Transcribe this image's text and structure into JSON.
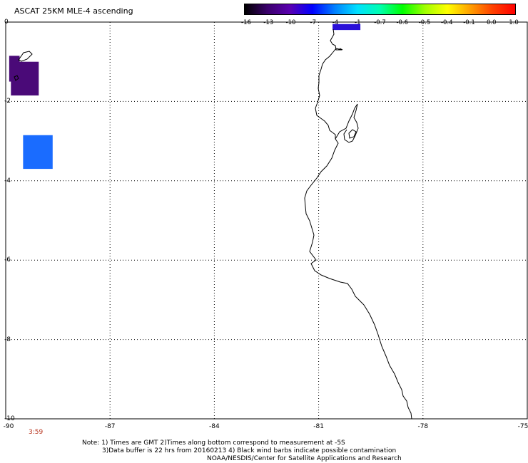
{
  "title": "ASCAT 25KM MLE-4 ascending",
  "colorbar": {
    "labels": [
      "-16",
      "-13",
      "-10",
      "-7",
      "-4",
      "-1",
      "-0.7",
      "-0.6",
      "-0.5",
      "-0.4",
      "-0.1",
      "0.0",
      "1.0"
    ],
    "gradient": [
      "#000000",
      "#3a006b",
      "#5a00b0",
      "#0000ff",
      "#0080ff",
      "#00e0ff",
      "#00ffb0",
      "#00ff00",
      "#a0ff00",
      "#ffff00",
      "#ffa000",
      "#ff4000",
      "#ff0000"
    ]
  },
  "axes": {
    "y_labels": [
      "0",
      "-2",
      "-4",
      "-6",
      "-8",
      "-10"
    ],
    "x_labels": [
      "-90",
      "-87",
      "-84",
      "-81",
      "-78",
      "-75"
    ],
    "lat_range": [
      -10,
      0
    ],
    "lon_range": [
      -90,
      -75
    ]
  },
  "swaths": [
    {
      "color": "#4a0a78",
      "lon_min": -89.9,
      "lon_max": -89.6,
      "lat_min": -1.5,
      "lat_max": -0.85
    },
    {
      "color": "#4a0a78",
      "lon_min": -89.85,
      "lon_max": -89.05,
      "lat_min": -1.85,
      "lat_max": -1.0
    },
    {
      "color": "#1a6cff",
      "lon_min": -89.5,
      "lon_max": -88.65,
      "lat_min": -3.7,
      "lat_max": -2.85
    },
    {
      "color": "#2a10d8",
      "lon_min": -80.6,
      "lon_max": -79.8,
      "lat_min": -0.2,
      "lat_max": -0.05
    }
  ],
  "time_label": "3:59",
  "notes": [
    "Note: 1) Times are GMT 2)Times along bottom correspond to measurement at -5S",
    "3)Data buffer is 22 hrs from 20160213 4) Black wind barbs indicate possible contamination",
    "NOAA/NESDIS/Center for Satellite Applications and Research"
  ]
}
